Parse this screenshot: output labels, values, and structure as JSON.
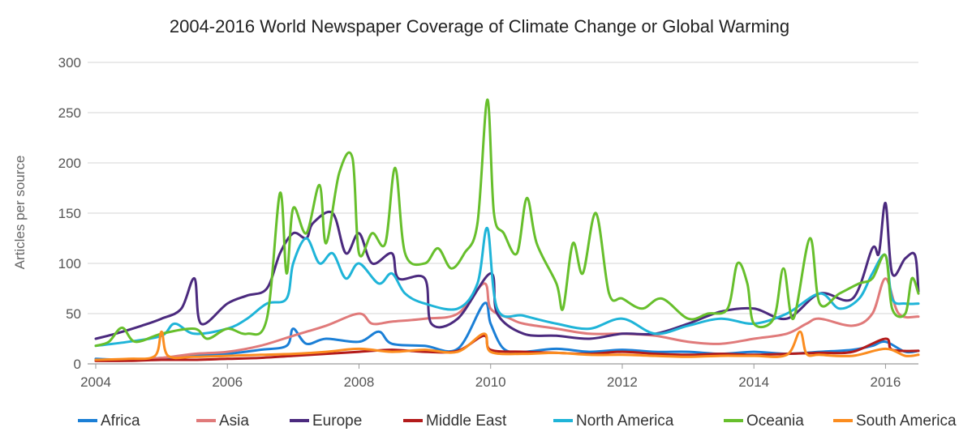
{
  "chart_data": {
    "type": "line",
    "title": "2004-2016 World Newspaper Coverage of Climate Change or Global Warming",
    "xlabel": "",
    "ylabel": "Articles per source",
    "xlim": [
      2004,
      2016.5
    ],
    "ylim": [
      0,
      300
    ],
    "x_ticks": [
      "2004",
      "2006",
      "2008",
      "2010",
      "2012",
      "2014",
      "2016"
    ],
    "y_ticks": [
      "0",
      "50",
      "100",
      "150",
      "200",
      "250",
      "300"
    ],
    "grid": true,
    "legend_position": "bottom",
    "series": [
      {
        "name": "Africa",
        "color": "#1b7fd6",
        "points": [
          [
            2004.0,
            5
          ],
          [
            2004.5,
            4
          ],
          [
            2005.0,
            6
          ],
          [
            2005.5,
            8
          ],
          [
            2006.0,
            10
          ],
          [
            2006.5,
            14
          ],
          [
            2006.9,
            18
          ],
          [
            2007.0,
            35
          ],
          [
            2007.2,
            20
          ],
          [
            2007.5,
            25
          ],
          [
            2008.0,
            22
          ],
          [
            2008.3,
            32
          ],
          [
            2008.5,
            20
          ],
          [
            2009.0,
            18
          ],
          [
            2009.5,
            15
          ],
          [
            2009.9,
            60
          ],
          [
            2010.0,
            40
          ],
          [
            2010.2,
            15
          ],
          [
            2010.5,
            12
          ],
          [
            2011.0,
            15
          ],
          [
            2011.5,
            12
          ],
          [
            2012.0,
            14
          ],
          [
            2012.5,
            12
          ],
          [
            2013.0,
            12
          ],
          [
            2013.5,
            10
          ],
          [
            2014.0,
            12
          ],
          [
            2014.5,
            10
          ],
          [
            2015.0,
            12
          ],
          [
            2015.5,
            14
          ],
          [
            2015.8,
            18
          ],
          [
            2016.0,
            22
          ],
          [
            2016.3,
            12
          ],
          [
            2016.5,
            13
          ]
        ]
      },
      {
        "name": "Asia",
        "color": "#e07a7a",
        "points": [
          [
            2004.0,
            3
          ],
          [
            2004.5,
            4
          ],
          [
            2005.0,
            6
          ],
          [
            2005.5,
            10
          ],
          [
            2006.0,
            12
          ],
          [
            2006.5,
            18
          ],
          [
            2007.0,
            28
          ],
          [
            2007.5,
            38
          ],
          [
            2008.0,
            50
          ],
          [
            2008.2,
            40
          ],
          [
            2008.5,
            42
          ],
          [
            2009.0,
            45
          ],
          [
            2009.5,
            50
          ],
          [
            2009.9,
            80
          ],
          [
            2010.0,
            55
          ],
          [
            2010.3,
            45
          ],
          [
            2010.5,
            40
          ],
          [
            2011.0,
            35
          ],
          [
            2011.5,
            30
          ],
          [
            2012.0,
            30
          ],
          [
            2012.5,
            28
          ],
          [
            2013.0,
            22
          ],
          [
            2013.5,
            20
          ],
          [
            2014.0,
            25
          ],
          [
            2014.5,
            30
          ],
          [
            2014.8,
            40
          ],
          [
            2015.0,
            45
          ],
          [
            2015.5,
            38
          ],
          [
            2015.8,
            50
          ],
          [
            2016.0,
            85
          ],
          [
            2016.2,
            50
          ],
          [
            2016.5,
            47
          ]
        ]
      },
      {
        "name": "Europe",
        "color": "#4b2a7e",
        "points": [
          [
            2004.0,
            25
          ],
          [
            2004.3,
            30
          ],
          [
            2004.7,
            38
          ],
          [
            2005.0,
            45
          ],
          [
            2005.3,
            55
          ],
          [
            2005.5,
            85
          ],
          [
            2005.6,
            40
          ],
          [
            2006.0,
            60
          ],
          [
            2006.3,
            68
          ],
          [
            2006.6,
            75
          ],
          [
            2006.8,
            110
          ],
          [
            2007.0,
            130
          ],
          [
            2007.2,
            125
          ],
          [
            2007.3,
            140
          ],
          [
            2007.6,
            150
          ],
          [
            2007.8,
            110
          ],
          [
            2008.0,
            130
          ],
          [
            2008.2,
            100
          ],
          [
            2008.5,
            110
          ],
          [
            2008.6,
            85
          ],
          [
            2009.0,
            85
          ],
          [
            2009.1,
            40
          ],
          [
            2009.5,
            45
          ],
          [
            2010.0,
            90
          ],
          [
            2010.1,
            50
          ],
          [
            2010.5,
            30
          ],
          [
            2011.0,
            28
          ],
          [
            2011.5,
            25
          ],
          [
            2012.0,
            30
          ],
          [
            2012.5,
            30
          ],
          [
            2013.0,
            40
          ],
          [
            2013.5,
            52
          ],
          [
            2014.0,
            55
          ],
          [
            2014.5,
            45
          ],
          [
            2015.0,
            70
          ],
          [
            2015.5,
            65
          ],
          [
            2015.8,
            115
          ],
          [
            2015.9,
            110
          ],
          [
            2016.0,
            160
          ],
          [
            2016.1,
            90
          ],
          [
            2016.3,
            105
          ],
          [
            2016.45,
            108
          ],
          [
            2016.5,
            72
          ]
        ]
      },
      {
        "name": "Middle East",
        "color": "#b31b1b",
        "points": [
          [
            2004.0,
            3
          ],
          [
            2004.5,
            3
          ],
          [
            2005.0,
            4
          ],
          [
            2005.5,
            4
          ],
          [
            2006.0,
            5
          ],
          [
            2006.5,
            6
          ],
          [
            2007.0,
            8
          ],
          [
            2007.5,
            10
          ],
          [
            2008.0,
            12
          ],
          [
            2008.5,
            14
          ],
          [
            2009.0,
            12
          ],
          [
            2009.5,
            13
          ],
          [
            2009.9,
            28
          ],
          [
            2010.0,
            14
          ],
          [
            2010.5,
            12
          ],
          [
            2011.0,
            11
          ],
          [
            2011.5,
            10
          ],
          [
            2012.0,
            12
          ],
          [
            2012.5,
            10
          ],
          [
            2013.0,
            9
          ],
          [
            2013.5,
            10
          ],
          [
            2014.0,
            9
          ],
          [
            2014.5,
            10
          ],
          [
            2015.0,
            11
          ],
          [
            2015.5,
            12
          ],
          [
            2016.0,
            25
          ],
          [
            2016.1,
            14
          ],
          [
            2016.5,
            13
          ]
        ]
      },
      {
        "name": "North America",
        "color": "#1fb4d8",
        "points": [
          [
            2004.0,
            18
          ],
          [
            2004.5,
            22
          ],
          [
            2005.0,
            28
          ],
          [
            2005.2,
            40
          ],
          [
            2005.5,
            30
          ],
          [
            2006.0,
            35
          ],
          [
            2006.3,
            45
          ],
          [
            2006.6,
            60
          ],
          [
            2006.9,
            65
          ],
          [
            2007.0,
            100
          ],
          [
            2007.2,
            125
          ],
          [
            2007.4,
            100
          ],
          [
            2007.6,
            110
          ],
          [
            2007.8,
            85
          ],
          [
            2008.0,
            100
          ],
          [
            2008.3,
            80
          ],
          [
            2008.5,
            90
          ],
          [
            2008.7,
            70
          ],
          [
            2009.0,
            60
          ],
          [
            2009.5,
            55
          ],
          [
            2009.8,
            80
          ],
          [
            2009.95,
            135
          ],
          [
            2010.1,
            55
          ],
          [
            2010.5,
            48
          ],
          [
            2011.0,
            40
          ],
          [
            2011.5,
            35
          ],
          [
            2012.0,
            45
          ],
          [
            2012.5,
            30
          ],
          [
            2013.0,
            38
          ],
          [
            2013.5,
            45
          ],
          [
            2014.0,
            40
          ],
          [
            2014.5,
            50
          ],
          [
            2015.0,
            70
          ],
          [
            2015.3,
            55
          ],
          [
            2015.6,
            65
          ],
          [
            2015.8,
            90
          ],
          [
            2016.0,
            108
          ],
          [
            2016.1,
            65
          ],
          [
            2016.3,
            60
          ],
          [
            2016.5,
            60
          ]
        ]
      },
      {
        "name": "Oceania",
        "color": "#67bf2c",
        "points": [
          [
            2004.0,
            18
          ],
          [
            2004.2,
            22
          ],
          [
            2004.4,
            36
          ],
          [
            2004.6,
            22
          ],
          [
            2005.0,
            30
          ],
          [
            2005.5,
            35
          ],
          [
            2005.7,
            25
          ],
          [
            2006.0,
            35
          ],
          [
            2006.3,
            30
          ],
          [
            2006.6,
            45
          ],
          [
            2006.8,
            170
          ],
          [
            2006.9,
            90
          ],
          [
            2007.0,
            155
          ],
          [
            2007.2,
            130
          ],
          [
            2007.4,
            178
          ],
          [
            2007.5,
            120
          ],
          [
            2007.7,
            190
          ],
          [
            2007.9,
            205
          ],
          [
            2008.0,
            110
          ],
          [
            2008.2,
            130
          ],
          [
            2008.4,
            120
          ],
          [
            2008.55,
            195
          ],
          [
            2008.7,
            110
          ],
          [
            2009.0,
            100
          ],
          [
            2009.2,
            115
          ],
          [
            2009.4,
            95
          ],
          [
            2009.6,
            110
          ],
          [
            2009.8,
            140
          ],
          [
            2009.95,
            263
          ],
          [
            2010.05,
            150
          ],
          [
            2010.2,
            130
          ],
          [
            2010.4,
            110
          ],
          [
            2010.55,
            165
          ],
          [
            2010.7,
            120
          ],
          [
            2011.0,
            80
          ],
          [
            2011.1,
            55
          ],
          [
            2011.25,
            120
          ],
          [
            2011.4,
            90
          ],
          [
            2011.6,
            150
          ],
          [
            2011.8,
            70
          ],
          [
            2012.0,
            65
          ],
          [
            2012.3,
            55
          ],
          [
            2012.6,
            65
          ],
          [
            2013.0,
            45
          ],
          [
            2013.3,
            50
          ],
          [
            2013.6,
            55
          ],
          [
            2013.75,
            100
          ],
          [
            2013.9,
            80
          ],
          [
            2014.0,
            40
          ],
          [
            2014.3,
            45
          ],
          [
            2014.45,
            95
          ],
          [
            2014.6,
            45
          ],
          [
            2014.85,
            125
          ],
          [
            2015.0,
            60
          ],
          [
            2015.3,
            70
          ],
          [
            2015.6,
            80
          ],
          [
            2015.8,
            85
          ],
          [
            2016.0,
            108
          ],
          [
            2016.1,
            55
          ],
          [
            2016.3,
            50
          ],
          [
            2016.4,
            85
          ],
          [
            2016.5,
            70
          ]
        ]
      },
      {
        "name": "South America",
        "color": "#fb8c1f",
        "points": [
          [
            2004.0,
            4
          ],
          [
            2004.5,
            5
          ],
          [
            2004.9,
            8
          ],
          [
            2005.0,
            32
          ],
          [
            2005.1,
            8
          ],
          [
            2005.5,
            7
          ],
          [
            2006.0,
            8
          ],
          [
            2006.5,
            9
          ],
          [
            2007.0,
            10
          ],
          [
            2007.5,
            12
          ],
          [
            2008.0,
            15
          ],
          [
            2008.5,
            12
          ],
          [
            2009.0,
            14
          ],
          [
            2009.5,
            12
          ],
          [
            2009.9,
            30
          ],
          [
            2010.0,
            12
          ],
          [
            2010.5,
            10
          ],
          [
            2011.0,
            11
          ],
          [
            2011.5,
            9
          ],
          [
            2012.0,
            9
          ],
          [
            2012.5,
            8
          ],
          [
            2013.0,
            7
          ],
          [
            2013.5,
            8
          ],
          [
            2014.0,
            8
          ],
          [
            2014.5,
            9
          ],
          [
            2014.7,
            32
          ],
          [
            2014.8,
            10
          ],
          [
            2015.0,
            9
          ],
          [
            2015.5,
            8
          ],
          [
            2016.0,
            15
          ],
          [
            2016.3,
            8
          ],
          [
            2016.5,
            9
          ]
        ]
      }
    ]
  }
}
